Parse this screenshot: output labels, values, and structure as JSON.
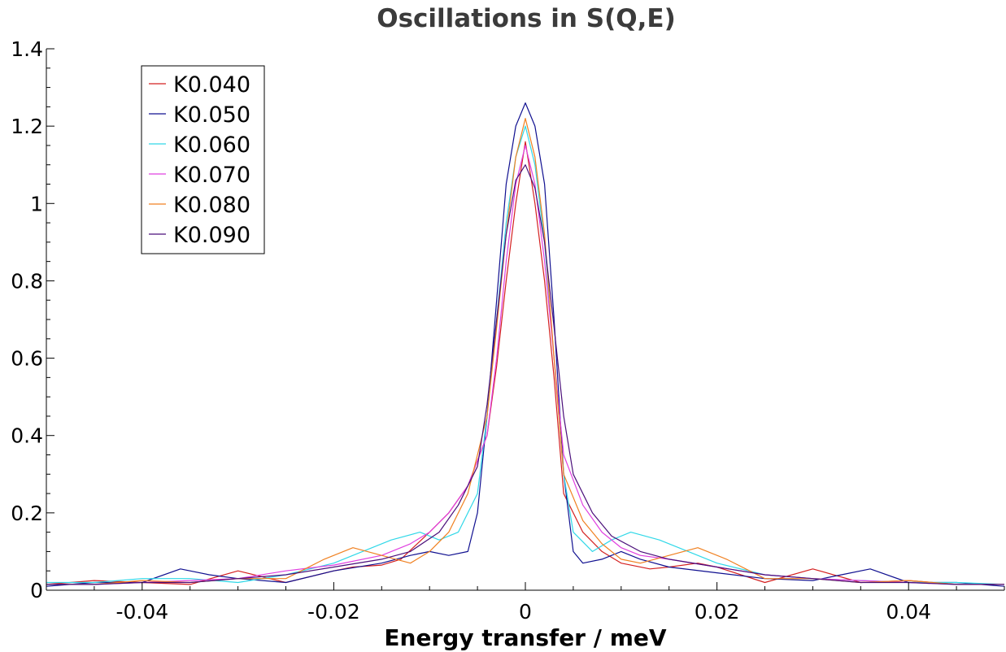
{
  "chart_data": {
    "type": "line",
    "title": "Oscillations in S(Q,E)",
    "xlabel": "Energy transfer / meV",
    "ylabel": "",
    "xlim": [
      -0.05,
      0.05
    ],
    "ylim": [
      0,
      1.4
    ],
    "xticks": [
      -0.04,
      -0.02,
      0,
      0.02,
      0.04
    ],
    "xtick_labels": [
      "-0.04",
      "-0.02",
      "0",
      "0.02",
      "0.04"
    ],
    "yticks": [
      0,
      0.2,
      0.4,
      0.6,
      0.8,
      1,
      1.2,
      1.4
    ],
    "ytick_labels": [
      "0",
      "0.2",
      "0.4",
      "0.6",
      "0.8",
      "1",
      "1.2",
      "1.4"
    ],
    "grid": false,
    "legend_position": "top-left",
    "series": [
      {
        "name": "K0.040",
        "color": "#d42020",
        "x": [
          -0.05,
          -0.045,
          -0.04,
          -0.035,
          -0.03,
          -0.025,
          -0.02,
          -0.018,
          -0.015,
          -0.013,
          -0.01,
          -0.008,
          -0.006,
          -0.004,
          -0.003,
          -0.002,
          -0.001,
          0,
          0.001,
          0.002,
          0.003,
          0.004,
          0.006,
          0.008,
          0.01,
          0.013,
          0.015,
          0.018,
          0.02,
          0.025,
          0.03,
          0.035,
          0.04,
          0.045,
          0.05
        ],
        "y": [
          0.015,
          0.025,
          0.02,
          0.015,
          0.05,
          0.02,
          0.05,
          0.06,
          0.065,
          0.08,
          0.15,
          0.2,
          0.27,
          0.4,
          0.58,
          0.8,
          1.0,
          1.16,
          1.0,
          0.8,
          0.55,
          0.25,
          0.15,
          0.1,
          0.07,
          0.055,
          0.06,
          0.07,
          0.06,
          0.02,
          0.055,
          0.02,
          0.025,
          0.015,
          0.015
        ]
      },
      {
        "name": "K0.050",
        "color": "#101090",
        "x": [
          -0.05,
          -0.045,
          -0.04,
          -0.036,
          -0.033,
          -0.03,
          -0.025,
          -0.02,
          -0.015,
          -0.012,
          -0.01,
          -0.008,
          -0.006,
          -0.005,
          -0.004,
          -0.003,
          -0.002,
          -0.001,
          0,
          0.001,
          0.002,
          0.003,
          0.004,
          0.005,
          0.006,
          0.008,
          0.01,
          0.012,
          0.015,
          0.02,
          0.025,
          0.03,
          0.033,
          0.036,
          0.04,
          0.045,
          0.05
        ],
        "y": [
          0.01,
          0.02,
          0.02,
          0.055,
          0.04,
          0.03,
          0.02,
          0.05,
          0.07,
          0.09,
          0.1,
          0.09,
          0.1,
          0.2,
          0.45,
          0.75,
          1.05,
          1.2,
          1.26,
          1.2,
          1.05,
          0.7,
          0.3,
          0.1,
          0.07,
          0.08,
          0.1,
          0.08,
          0.06,
          0.045,
          0.03,
          0.025,
          0.04,
          0.055,
          0.02,
          0.02,
          0.01
        ]
      },
      {
        "name": "K0.060",
        "color": "#30d8e8",
        "x": [
          -0.05,
          -0.045,
          -0.04,
          -0.035,
          -0.03,
          -0.025,
          -0.02,
          -0.017,
          -0.014,
          -0.011,
          -0.009,
          -0.007,
          -0.005,
          -0.004,
          -0.003,
          -0.002,
          -0.001,
          0,
          0.001,
          0.002,
          0.003,
          0.004,
          0.005,
          0.007,
          0.009,
          0.011,
          0.014,
          0.017,
          0.02,
          0.025,
          0.03,
          0.035,
          0.04,
          0.045,
          0.05
        ],
        "y": [
          0.02,
          0.02,
          0.03,
          0.03,
          0.02,
          0.04,
          0.07,
          0.1,
          0.13,
          0.15,
          0.13,
          0.15,
          0.25,
          0.45,
          0.7,
          0.95,
          1.12,
          1.2,
          1.1,
          0.9,
          0.6,
          0.3,
          0.15,
          0.1,
          0.13,
          0.15,
          0.13,
          0.1,
          0.07,
          0.04,
          0.03,
          0.025,
          0.02,
          0.02,
          0.015
        ]
      },
      {
        "name": "K0.070",
        "color": "#e040e0",
        "x": [
          -0.05,
          -0.045,
          -0.04,
          -0.035,
          -0.03,
          -0.025,
          -0.02,
          -0.015,
          -0.012,
          -0.01,
          -0.008,
          -0.006,
          -0.004,
          -0.003,
          -0.002,
          -0.001,
          0,
          0.001,
          0.002,
          0.003,
          0.004,
          0.006,
          0.008,
          0.01,
          0.012,
          0.015,
          0.02,
          0.025,
          0.03,
          0.035,
          0.04,
          0.045,
          0.05
        ],
        "y": [
          0.015,
          0.015,
          0.02,
          0.025,
          0.03,
          0.05,
          0.065,
          0.09,
          0.12,
          0.15,
          0.2,
          0.27,
          0.4,
          0.6,
          0.85,
          1.05,
          1.15,
          1.05,
          0.85,
          0.6,
          0.35,
          0.22,
          0.15,
          0.11,
          0.09,
          0.08,
          0.06,
          0.04,
          0.03,
          0.025,
          0.02,
          0.015,
          0.015
        ]
      },
      {
        "name": "K0.080",
        "color": "#f08020",
        "x": [
          -0.05,
          -0.045,
          -0.04,
          -0.035,
          -0.03,
          -0.025,
          -0.021,
          -0.018,
          -0.015,
          -0.012,
          -0.01,
          -0.008,
          -0.006,
          -0.004,
          -0.003,
          -0.002,
          -0.001,
          0,
          0.001,
          0.002,
          0.003,
          0.004,
          0.006,
          0.008,
          0.01,
          0.012,
          0.015,
          0.018,
          0.021,
          0.025,
          0.03,
          0.035,
          0.04,
          0.045,
          0.05
        ],
        "y": [
          0.015,
          0.015,
          0.025,
          0.02,
          0.03,
          0.03,
          0.08,
          0.11,
          0.09,
          0.07,
          0.1,
          0.15,
          0.25,
          0.45,
          0.68,
          0.92,
          1.12,
          1.22,
          1.12,
          0.92,
          0.6,
          0.3,
          0.18,
          0.12,
          0.08,
          0.07,
          0.09,
          0.11,
          0.08,
          0.03,
          0.03,
          0.02,
          0.025,
          0.015,
          0.015
        ]
      },
      {
        "name": "K0.090",
        "color": "#4a0f7a",
        "x": [
          -0.05,
          -0.045,
          -0.04,
          -0.035,
          -0.03,
          -0.025,
          -0.02,
          -0.015,
          -0.012,
          -0.009,
          -0.007,
          -0.005,
          -0.004,
          -0.003,
          -0.002,
          -0.001,
          0,
          0.001,
          0.002,
          0.003,
          0.004,
          0.005,
          0.007,
          0.009,
          0.012,
          0.015,
          0.02,
          0.025,
          0.03,
          0.035,
          0.04,
          0.045,
          0.05
        ],
        "y": [
          0.015,
          0.015,
          0.02,
          0.02,
          0.03,
          0.04,
          0.06,
          0.08,
          0.1,
          0.15,
          0.22,
          0.32,
          0.48,
          0.7,
          0.92,
          1.06,
          1.1,
          1.04,
          0.9,
          0.68,
          0.45,
          0.3,
          0.2,
          0.14,
          0.1,
          0.08,
          0.06,
          0.04,
          0.03,
          0.02,
          0.02,
          0.015,
          0.015
        ]
      }
    ]
  }
}
